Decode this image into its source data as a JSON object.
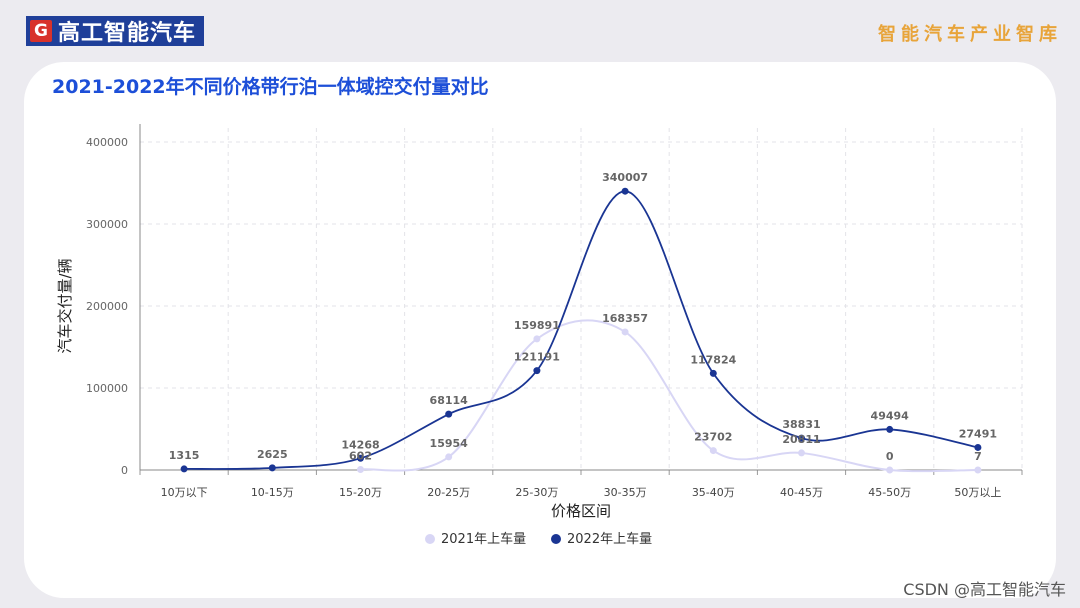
{
  "header": {
    "brand_mark": "G",
    "brand_name": "高工智能汽车",
    "tagline": "智能汽车产业智库"
  },
  "footer": {
    "watermark": "CSDN @高工智能汽车"
  },
  "colors": {
    "series_2021": "#d8d6f5",
    "series_2022": "#1a3593",
    "title": "#1d4fd8",
    "tagline": "#e8a43a"
  },
  "chart_data": {
    "type": "line",
    "title": "2021-2022年不同价格带行泊一体域控交付量对比",
    "xlabel": "价格区间",
    "ylabel": "汽车交付量/辆",
    "categories": [
      "10万以下",
      "10-15万",
      "15-20万",
      "20-25万",
      "25-30万",
      "30-35万",
      "35-40万",
      "40-45万",
      "45-50万",
      "50万以上"
    ],
    "series": [
      {
        "name": "2021年上车量",
        "values": [
          null,
          null,
          602,
          15954,
          159891,
          168357,
          23702,
          20811,
          0,
          7
        ],
        "color": "#d8d6f5"
      },
      {
        "name": "2022年上车量",
        "values": [
          1315,
          2625,
          14268,
          68114,
          121191,
          340007,
          117824,
          38831,
          49494,
          27491
        ],
        "color": "#1a3593"
      }
    ],
    "ylim": [
      0,
      400000
    ],
    "yticks": [
      0,
      100000,
      200000,
      300000,
      400000
    ],
    "grid": true,
    "smooth": true,
    "legend": "bottom-center"
  }
}
